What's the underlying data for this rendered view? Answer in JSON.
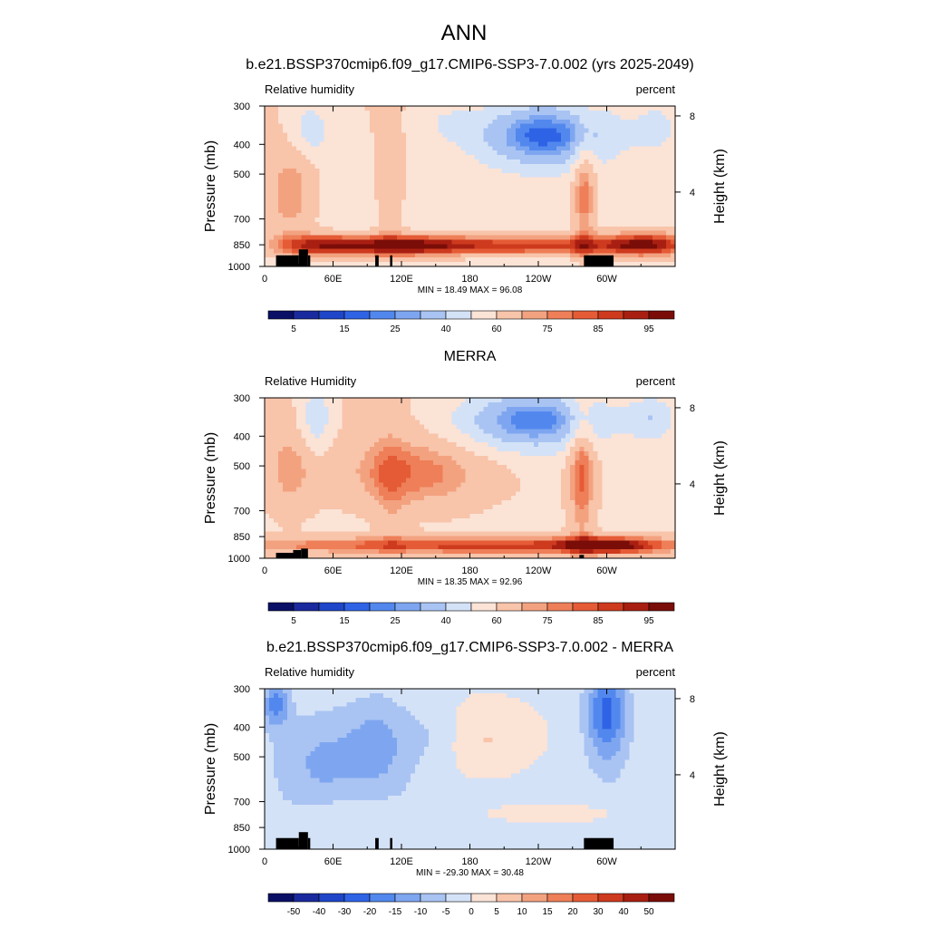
{
  "figure": {
    "title": "ANN"
  },
  "colormaps": {
    "abs": [
      "#0a1066",
      "#1a2a9e",
      "#1f46c8",
      "#2f63e6",
      "#5288ee",
      "#7ea6f0",
      "#a9c4f3",
      "#d4e2f7",
      "#fbe3d6",
      "#f8c4aa",
      "#f3a280",
      "#ee7f58",
      "#e55b36",
      "#cd3a1e",
      "#a81f12",
      "#7a0d08"
    ],
    "diff": [
      "#0a1066",
      "#1a2a9e",
      "#1f46c8",
      "#2f63e6",
      "#5288ee",
      "#7ea6f0",
      "#a9c4f3",
      "#d4e2f7",
      "#fbe3d6",
      "#f8c4aa",
      "#f3a280",
      "#ee7f58",
      "#e55b36",
      "#cd3a1e",
      "#a81f12",
      "#7a0d08"
    ],
    "terrain": "#000000"
  },
  "chart_data": [
    {
      "type": "heatmap",
      "title": "b.e21.BSSP370cmip6.f09_g17.CMIP6-SSP3-7.0.002 (yrs 2025-2049)",
      "left_string": "Relative humidity",
      "right_string": "percent",
      "ylabel": "Pressure (mb)",
      "ylabel_right": "Height (km)",
      "x_ticks": [
        "0",
        "60E",
        "120E",
        "180",
        "120W",
        "60W"
      ],
      "x_tick_values": [
        0,
        60,
        120,
        180,
        240,
        300
      ],
      "xlim": [
        0,
        360
      ],
      "y_ticks": [
        "300",
        "400",
        "500",
        "700",
        "850",
        "1000"
      ],
      "y_tick_values": [
        300,
        400,
        500,
        700,
        850,
        1000
      ],
      "ylim": [
        1000,
        300
      ],
      "y_scale": "log",
      "height_ticks": [
        "8",
        "4"
      ],
      "height_values": [
        8,
        4
      ],
      "min_max": "MIN =  18.49  MAX =  96.08",
      "colorbar_type": "abs",
      "colorbar_labels": [
        "5",
        "15",
        "25",
        "40",
        "60",
        "75",
        "85",
        "95"
      ],
      "terrain": "model"
    },
    {
      "type": "heatmap",
      "title": "MERRA",
      "left_string": "Relative Humidity",
      "right_string": "percent",
      "ylabel": "Pressure (mb)",
      "ylabel_right": "Height (km)",
      "x_ticks": [
        "0",
        "60E",
        "120E",
        "180",
        "120W",
        "60W"
      ],
      "x_tick_values": [
        0,
        60,
        120,
        180,
        240,
        300
      ],
      "xlim": [
        0,
        360
      ],
      "y_ticks": [
        "300",
        "400",
        "500",
        "700",
        "850",
        "1000"
      ],
      "y_tick_values": [
        300,
        400,
        500,
        700,
        850,
        1000
      ],
      "ylim": [
        1000,
        300
      ],
      "y_scale": "log",
      "height_ticks": [
        "8",
        "4"
      ],
      "height_values": [
        8,
        4
      ],
      "min_max": "MIN =  18.35  MAX =  92.96",
      "colorbar_type": "abs",
      "colorbar_labels": [
        "5",
        "15",
        "25",
        "40",
        "60",
        "75",
        "85",
        "95"
      ],
      "terrain": "merra"
    },
    {
      "type": "heatmap",
      "title": "b.e21.BSSP370cmip6.f09_g17.CMIP6-SSP3-7.0.002 - MERRA",
      "left_string": "Relative humidity",
      "right_string": "percent",
      "ylabel": "Pressure (mb)",
      "ylabel_right": "Height (km)",
      "x_ticks": [
        "0",
        "60E",
        "120E",
        "180",
        "120W",
        "60W"
      ],
      "x_tick_values": [
        0,
        60,
        120,
        180,
        240,
        300
      ],
      "xlim": [
        0,
        360
      ],
      "y_ticks": [
        "300",
        "400",
        "500",
        "700",
        "850",
        "1000"
      ],
      "y_tick_values": [
        300,
        400,
        500,
        700,
        850,
        1000
      ],
      "ylim": [
        1000,
        300
      ],
      "y_scale": "log",
      "height_ticks": [
        "8",
        "4"
      ],
      "height_values": [
        8,
        4
      ],
      "min_max": "MIN = -29.30  MAX =  30.48",
      "colorbar_type": "diff",
      "colorbar_labels": [
        "-50",
        "-40",
        "-30",
        "-20",
        "-15",
        "-10",
        "-5",
        "0",
        "5",
        "10",
        "15",
        "20",
        "30",
        "40",
        "50"
      ],
      "terrain": "model"
    }
  ]
}
